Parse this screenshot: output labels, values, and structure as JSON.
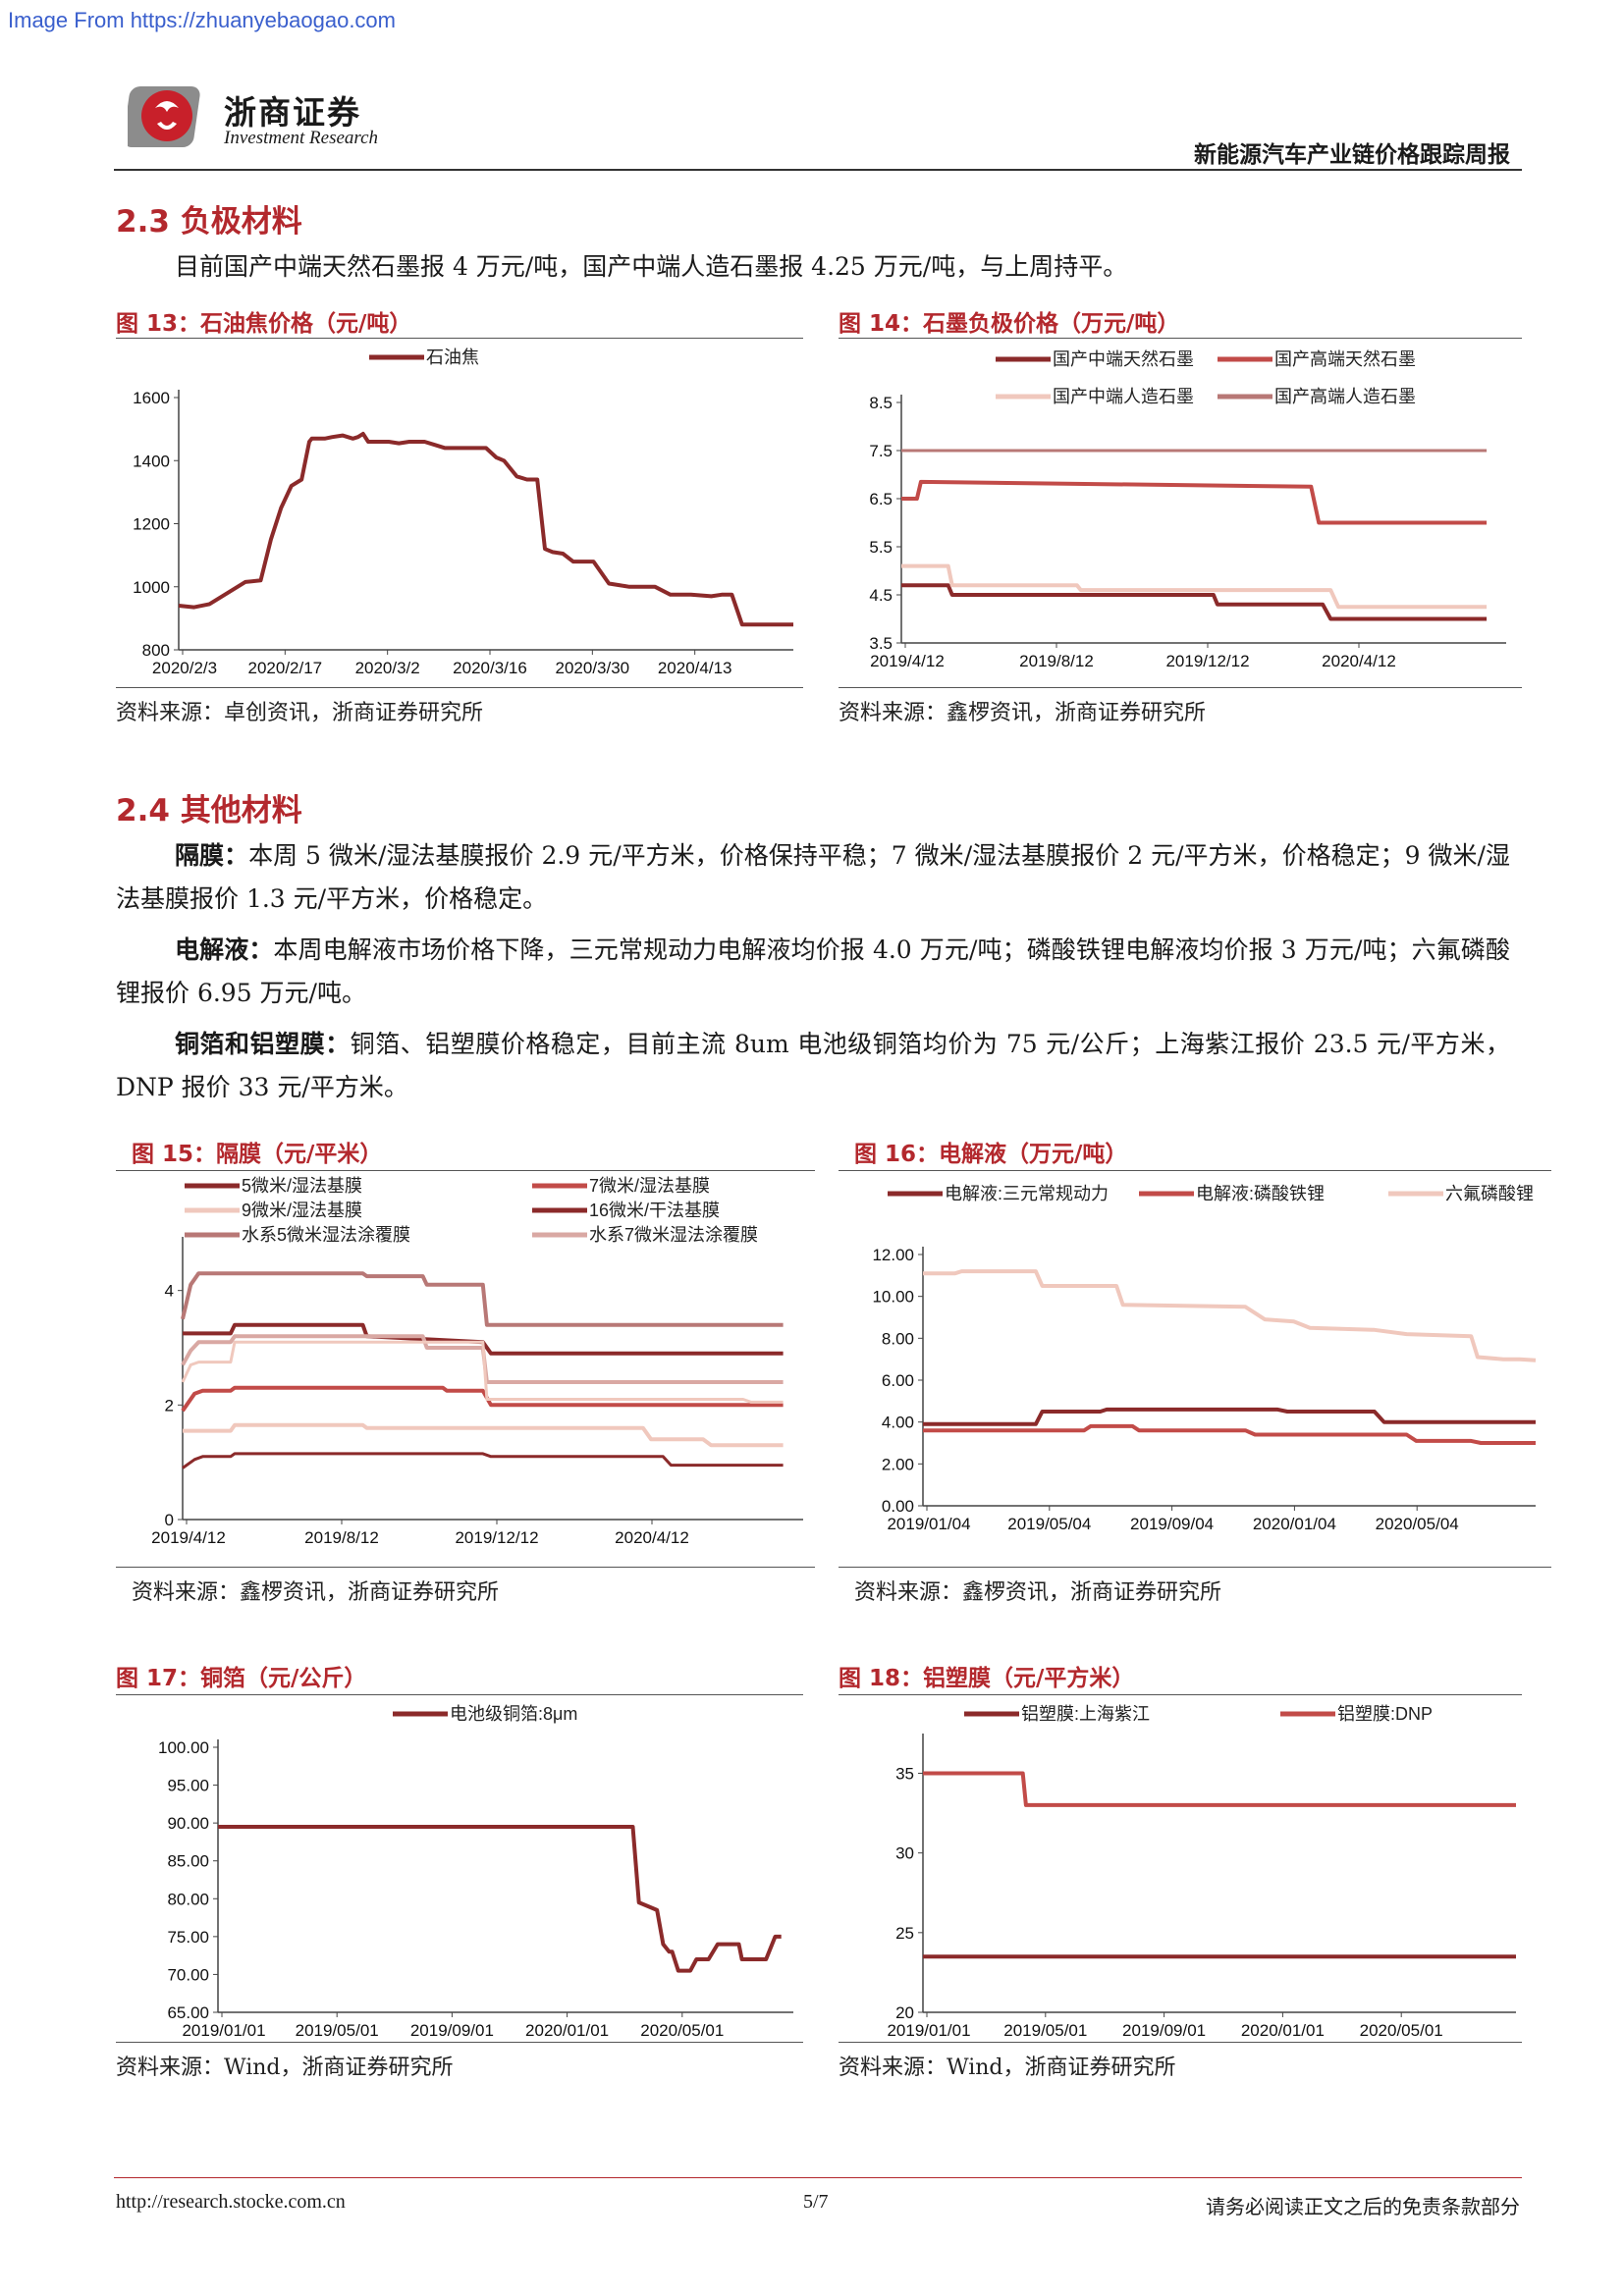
{
  "watermark": "Image From https://zhuanyebaogao.com",
  "header": {
    "company": "浙商证券",
    "company_en": "Investment Research",
    "report_title": "新能源汽车产业链价格跟踪周报"
  },
  "section_23": {
    "heading": "2.3 负极材料",
    "text": "目前国产中端天然石墨报 4 万元/吨，国产中端人造石墨报 4.25 万元/吨，与上周持平。"
  },
  "section_24": {
    "heading": "2.4 其他材料",
    "p1_label": "隔膜：",
    "p1_text": "本周 5 微米/湿法基膜报价 2.9 元/平方米，价格保持平稳；7 微米/湿法基膜报价 2 元/平方米，价格稳定；9 微米/湿法基膜报价 1.3 元/平方米，价格稳定。",
    "p2_label": "电解液：",
    "p2_text": "本周电解液市场价格下降，三元常规动力电解液均价报 4.0 万元/吨；磷酸铁锂电解液均价报 3 万元/吨；六氟磷酸锂报价 6.95 万元/吨。",
    "p3_label": "铜箔和铝塑膜：",
    "p3_text": "铜箔、铝塑膜价格稳定，目前主流 8um 电池级铜箔均价为 75 元/公斤；上海紫江报价 23.5 元/平方米，DNP 报价 33 元/平方米。"
  },
  "figures": {
    "f13": {
      "title": "图 13：石油焦价格（元/吨）",
      "source": "资料来源：卓创资讯，浙商证券研究所"
    },
    "f14": {
      "title": "图 14：石墨负极价格（万元/吨）",
      "source": "资料来源：鑫椤资讯，浙商证券研究所"
    },
    "f15": {
      "title": "图 15：隔膜（元/平米）",
      "source": "资料来源：鑫椤资讯，浙商证券研究所"
    },
    "f16": {
      "title": "图 16：电解液（万元/吨）",
      "source": "资料来源：鑫椤资讯，浙商证券研究所"
    },
    "f17": {
      "title": "图 17：铜箔（元/公斤）",
      "source": "资料来源：Wind，浙商证券研究所"
    },
    "f18": {
      "title": "图 18：铝塑膜（元/平方米）",
      "source": "资料来源：Wind，浙商证券研究所"
    }
  },
  "footer": {
    "url": "http://research.stocke.com.cn",
    "page": "5/7",
    "disclaimer": "请务必阅读正文之后的免责条款部分"
  },
  "chart_data": [
    {
      "id": "f13",
      "type": "line",
      "yticks": [
        800,
        1000,
        1200,
        1400,
        1600
      ],
      "ylim": [
        800,
        1600
      ],
      "xticks": [
        "2020/2/3",
        "2020/2/17",
        "2020/3/2",
        "2020/3/16",
        "2020/3/30",
        "2020/4/13"
      ],
      "xmax": 12,
      "legend": "top",
      "series": [
        {
          "name": "石油焦",
          "color": "#8b2a2a",
          "width": 4,
          "x": [
            0,
            0.3,
            0.6,
            1.0,
            1.3,
            1.6,
            1.8,
            2.0,
            2.2,
            2.4,
            2.55,
            2.6,
            2.75,
            2.85,
            3.0,
            3.2,
            3.4,
            3.5,
            3.6,
            3.7,
            3.9,
            4.1,
            4.3,
            4.5,
            4.8,
            5.0,
            5.2,
            5.4,
            5.6,
            5.9,
            6.0,
            6.2,
            6.35,
            6.5,
            6.6,
            6.8,
            7.0,
            7.15,
            7.3,
            7.5,
            7.7,
            7.9,
            8.1,
            8.4,
            8.6,
            8.8,
            9.0,
            9.3,
            9.6,
            10.0,
            10.4,
            10.6,
            10.8,
            11.0,
            11.5,
            12.0
          ],
          "y": [
            940,
            935,
            945,
            985,
            1015,
            1020,
            1150,
            1250,
            1320,
            1340,
            1460,
            1470,
            1470,
            1470,
            1475,
            1480,
            1470,
            1475,
            1485,
            1460,
            1460,
            1460,
            1455,
            1460,
            1460,
            1450,
            1440,
            1440,
            1440,
            1440,
            1440,
            1410,
            1400,
            1370,
            1350,
            1340,
            1340,
            1120,
            1110,
            1105,
            1080,
            1080,
            1080,
            1010,
            1005,
            1000,
            1000,
            1000,
            975,
            975,
            970,
            975,
            975,
            880,
            880,
            880
          ]
        }
      ]
    },
    {
      "id": "f14",
      "type": "line",
      "yticks": [
        3.5,
        4.5,
        5.5,
        6.5,
        7.5,
        8.5
      ],
      "ylim": [
        3.5,
        8.5
      ],
      "xticks": [
        "2019/4/12",
        "2019/8/12",
        "2019/12/12",
        "2020/4/12"
      ],
      "xmax": 15.5,
      "legend": "top",
      "series": [
        {
          "name": "国产中端天然石墨",
          "color": "#8b2a2a",
          "width": 4,
          "x": [
            0,
            1.2,
            1.3,
            8.0,
            8.1,
            10.8,
            11.0,
            15.0
          ],
          "y": [
            4.7,
            4.7,
            4.5,
            4.5,
            4.3,
            4.3,
            4.0,
            4.0
          ]
        },
        {
          "name": "国产高端天然石墨",
          "color": "#c24b48",
          "width": 4,
          "x": [
            0,
            0.4,
            0.5,
            10.5,
            10.7,
            15.0
          ],
          "y": [
            6.5,
            6.5,
            6.85,
            6.75,
            6.0,
            6.0
          ]
        },
        {
          "name": "国产中端人造石墨",
          "color": "#f0c8bd",
          "width": 4,
          "x": [
            0,
            1.2,
            1.3,
            4.5,
            4.6,
            11.0,
            11.2,
            15.0
          ],
          "y": [
            5.1,
            5.1,
            4.7,
            4.7,
            4.6,
            4.6,
            4.25,
            4.25
          ]
        },
        {
          "name": "国产高端人造石墨",
          "color": "#b87876",
          "width": 3,
          "x": [
            0,
            15.0
          ],
          "y": [
            7.5,
            7.5
          ]
        }
      ]
    },
    {
      "id": "f15",
      "type": "line",
      "yticks": [
        0,
        2,
        4
      ],
      "ylim": [
        0,
        4.8
      ],
      "xticks": [
        "2019/4/12",
        "2019/8/12",
        "2019/12/12",
        "2020/4/12"
      ],
      "xmax": 15.5,
      "legend": "top",
      "series": [
        {
          "name": "5微米/湿法基膜",
          "color": "#8b2a2a",
          "width": 4,
          "x": [
            0,
            1.2,
            1.3,
            4.5,
            4.6,
            7.5,
            7.7,
            15.0
          ],
          "y": [
            3.25,
            3.25,
            3.4,
            3.4,
            3.2,
            3.1,
            2.9,
            2.9
          ]
        },
        {
          "name": "7微米/湿法基膜",
          "color": "#c24b48",
          "width": 4,
          "x": [
            0,
            0.3,
            0.5,
            1.2,
            1.3,
            6.5,
            6.6,
            7.5,
            7.7,
            15.0
          ],
          "y": [
            1.9,
            2.2,
            2.25,
            2.25,
            2.3,
            2.3,
            2.25,
            2.25,
            2.0,
            2.0
          ]
        },
        {
          "name": "9微米/湿法基膜",
          "color": "#f0c8bd",
          "width": 4,
          "x": [
            0,
            1.2,
            1.3,
            4.5,
            4.6,
            11.5,
            11.7,
            13.0,
            13.2,
            15.0
          ],
          "y": [
            1.55,
            1.55,
            1.65,
            1.65,
            1.6,
            1.6,
            1.4,
            1.4,
            1.3,
            1.3
          ]
        },
        {
          "name": "16微米/干法基膜",
          "color": "#8b2a2a",
          "width": 3,
          "x": [
            0,
            0.3,
            0.5,
            1.2,
            1.3,
            7.5,
            7.7,
            12.0,
            12.2,
            15.0
          ],
          "y": [
            0.9,
            1.05,
            1.1,
            1.1,
            1.15,
            1.15,
            1.1,
            1.1,
            0.95,
            0.95
          ]
        },
        {
          "name": "水系5微米湿法涂覆膜",
          "color": "#b87876",
          "width": 4,
          "x": [
            0,
            0.2,
            0.4,
            1.2,
            1.3,
            4.5,
            4.6,
            6.0,
            6.1,
            7.5,
            7.6,
            15.0
          ],
          "y": [
            3.5,
            4.1,
            4.3,
            4.3,
            4.3,
            4.3,
            4.25,
            4.25,
            4.1,
            4.1,
            3.4,
            3.4
          ]
        },
        {
          "name": "水系7微米湿法涂覆膜",
          "color": "#d9a8a3",
          "width": 4,
          "x": [
            0,
            0.2,
            0.4,
            1.2,
            1.3,
            6.0,
            6.1,
            7.5,
            7.6,
            15.0
          ],
          "y": [
            2.7,
            2.95,
            3.1,
            3.1,
            3.2,
            3.2,
            3.0,
            3.0,
            2.4,
            2.4
          ]
        },
        {
          "name": "",
          "color": "#f0c8bd",
          "width": 3,
          "x": [
            0,
            0.2,
            0.4,
            1.2,
            1.3,
            7.5,
            7.6,
            14.0,
            14.2,
            15.0
          ],
          "y": [
            2.4,
            2.7,
            2.75,
            2.75,
            3.1,
            3.1,
            2.1,
            2.1,
            2.05,
            2.05
          ]
        }
      ]
    },
    {
      "id": "f16",
      "type": "line",
      "yticks": [
        "0.00",
        "2.00",
        "4.00",
        "6.00",
        "8.00",
        "10.00",
        "12.00"
      ],
      "ylim": [
        0,
        12
      ],
      "xticks": [
        "2019/01/04",
        "2019/05/04",
        "2019/09/04",
        "2020/01/04",
        "2020/05/04"
      ],
      "xmax": 19,
      "legend": "top",
      "series": [
        {
          "name": "电解液:三元常规动力",
          "color": "#8b2a2a",
          "width": 4,
          "x": [
            0,
            3.5,
            3.7,
            5.5,
            5.7,
            11.0,
            11.3,
            14.0,
            14.3,
            19.0
          ],
          "y": [
            3.9,
            3.9,
            4.5,
            4.5,
            4.6,
            4.6,
            4.5,
            4.5,
            4.0,
            4.0
          ]
        },
        {
          "name": "电解液:磷酸铁锂",
          "color": "#c24b48",
          "width": 4,
          "x": [
            0,
            5.0,
            5.2,
            6.5,
            6.7,
            10.0,
            10.3,
            15.0,
            15.3,
            17.0,
            17.3,
            19.0
          ],
          "y": [
            3.6,
            3.6,
            3.8,
            3.8,
            3.6,
            3.6,
            3.4,
            3.4,
            3.1,
            3.1,
            3.0,
            3.0
          ]
        },
        {
          "name": "六氟磷酸锂",
          "color": "#f0c8bd",
          "width": 4,
          "x": [
            0,
            1.0,
            1.2,
            3.5,
            3.7,
            6.0,
            6.2,
            10.0,
            10.3,
            10.6,
            11.5,
            12.0,
            14.0,
            15.0,
            17.0,
            17.2,
            18.0,
            18.5,
            19.0
          ],
          "y": [
            11.1,
            11.1,
            11.2,
            11.2,
            10.5,
            10.5,
            9.6,
            9.5,
            9.2,
            8.9,
            8.8,
            8.5,
            8.4,
            8.2,
            8.1,
            7.1,
            7.0,
            7.0,
            6.95
          ]
        }
      ]
    },
    {
      "id": "f17",
      "type": "line",
      "yticks": [
        "65.00",
        "70.00",
        "75.00",
        "80.00",
        "85.00",
        "90.00",
        "95.00",
        "100.00"
      ],
      "ylim": [
        65,
        100
      ],
      "xticks": [
        "2019/01/01",
        "2019/05/01",
        "2019/09/01",
        "2020/01/01",
        "2020/05/01"
      ],
      "xmax": 19,
      "legend": "top",
      "series": [
        {
          "name": "电池级铜箔:8μm",
          "color": "#8b2a2a",
          "width": 4,
          "x": [
            0,
            13.7,
            13.9,
            14.2,
            14.5,
            14.7,
            14.9,
            15.0,
            15.2,
            15.6,
            15.8,
            16.2,
            16.5,
            17.2,
            17.3,
            18.1,
            18.4,
            18.6
          ],
          "y": [
            89.5,
            89.5,
            79.5,
            79,
            78.5,
            74,
            73,
            73,
            70.5,
            70.5,
            72,
            72,
            74,
            74,
            72,
            72,
            75,
            75
          ]
        }
      ]
    },
    {
      "id": "f18",
      "type": "line",
      "yticks": [
        "20",
        "25",
        "30",
        "35"
      ],
      "ylim": [
        20,
        37
      ],
      "xticks": [
        "2019/01/01",
        "2019/05/01",
        "2019/09/01",
        "2020/01/01",
        "2020/05/01"
      ],
      "xmax": 19,
      "legend": "top",
      "series": [
        {
          "name": "铝塑膜:上海紫江",
          "color": "#8b2a2a",
          "width": 4,
          "x": [
            0,
            19
          ],
          "y": [
            23.5,
            23.5
          ]
        },
        {
          "name": "铝塑膜:DNP",
          "color": "#c24b48",
          "width": 4,
          "x": [
            0,
            3.2,
            3.3,
            19
          ],
          "y": [
            35,
            35,
            33,
            33
          ]
        }
      ]
    }
  ]
}
